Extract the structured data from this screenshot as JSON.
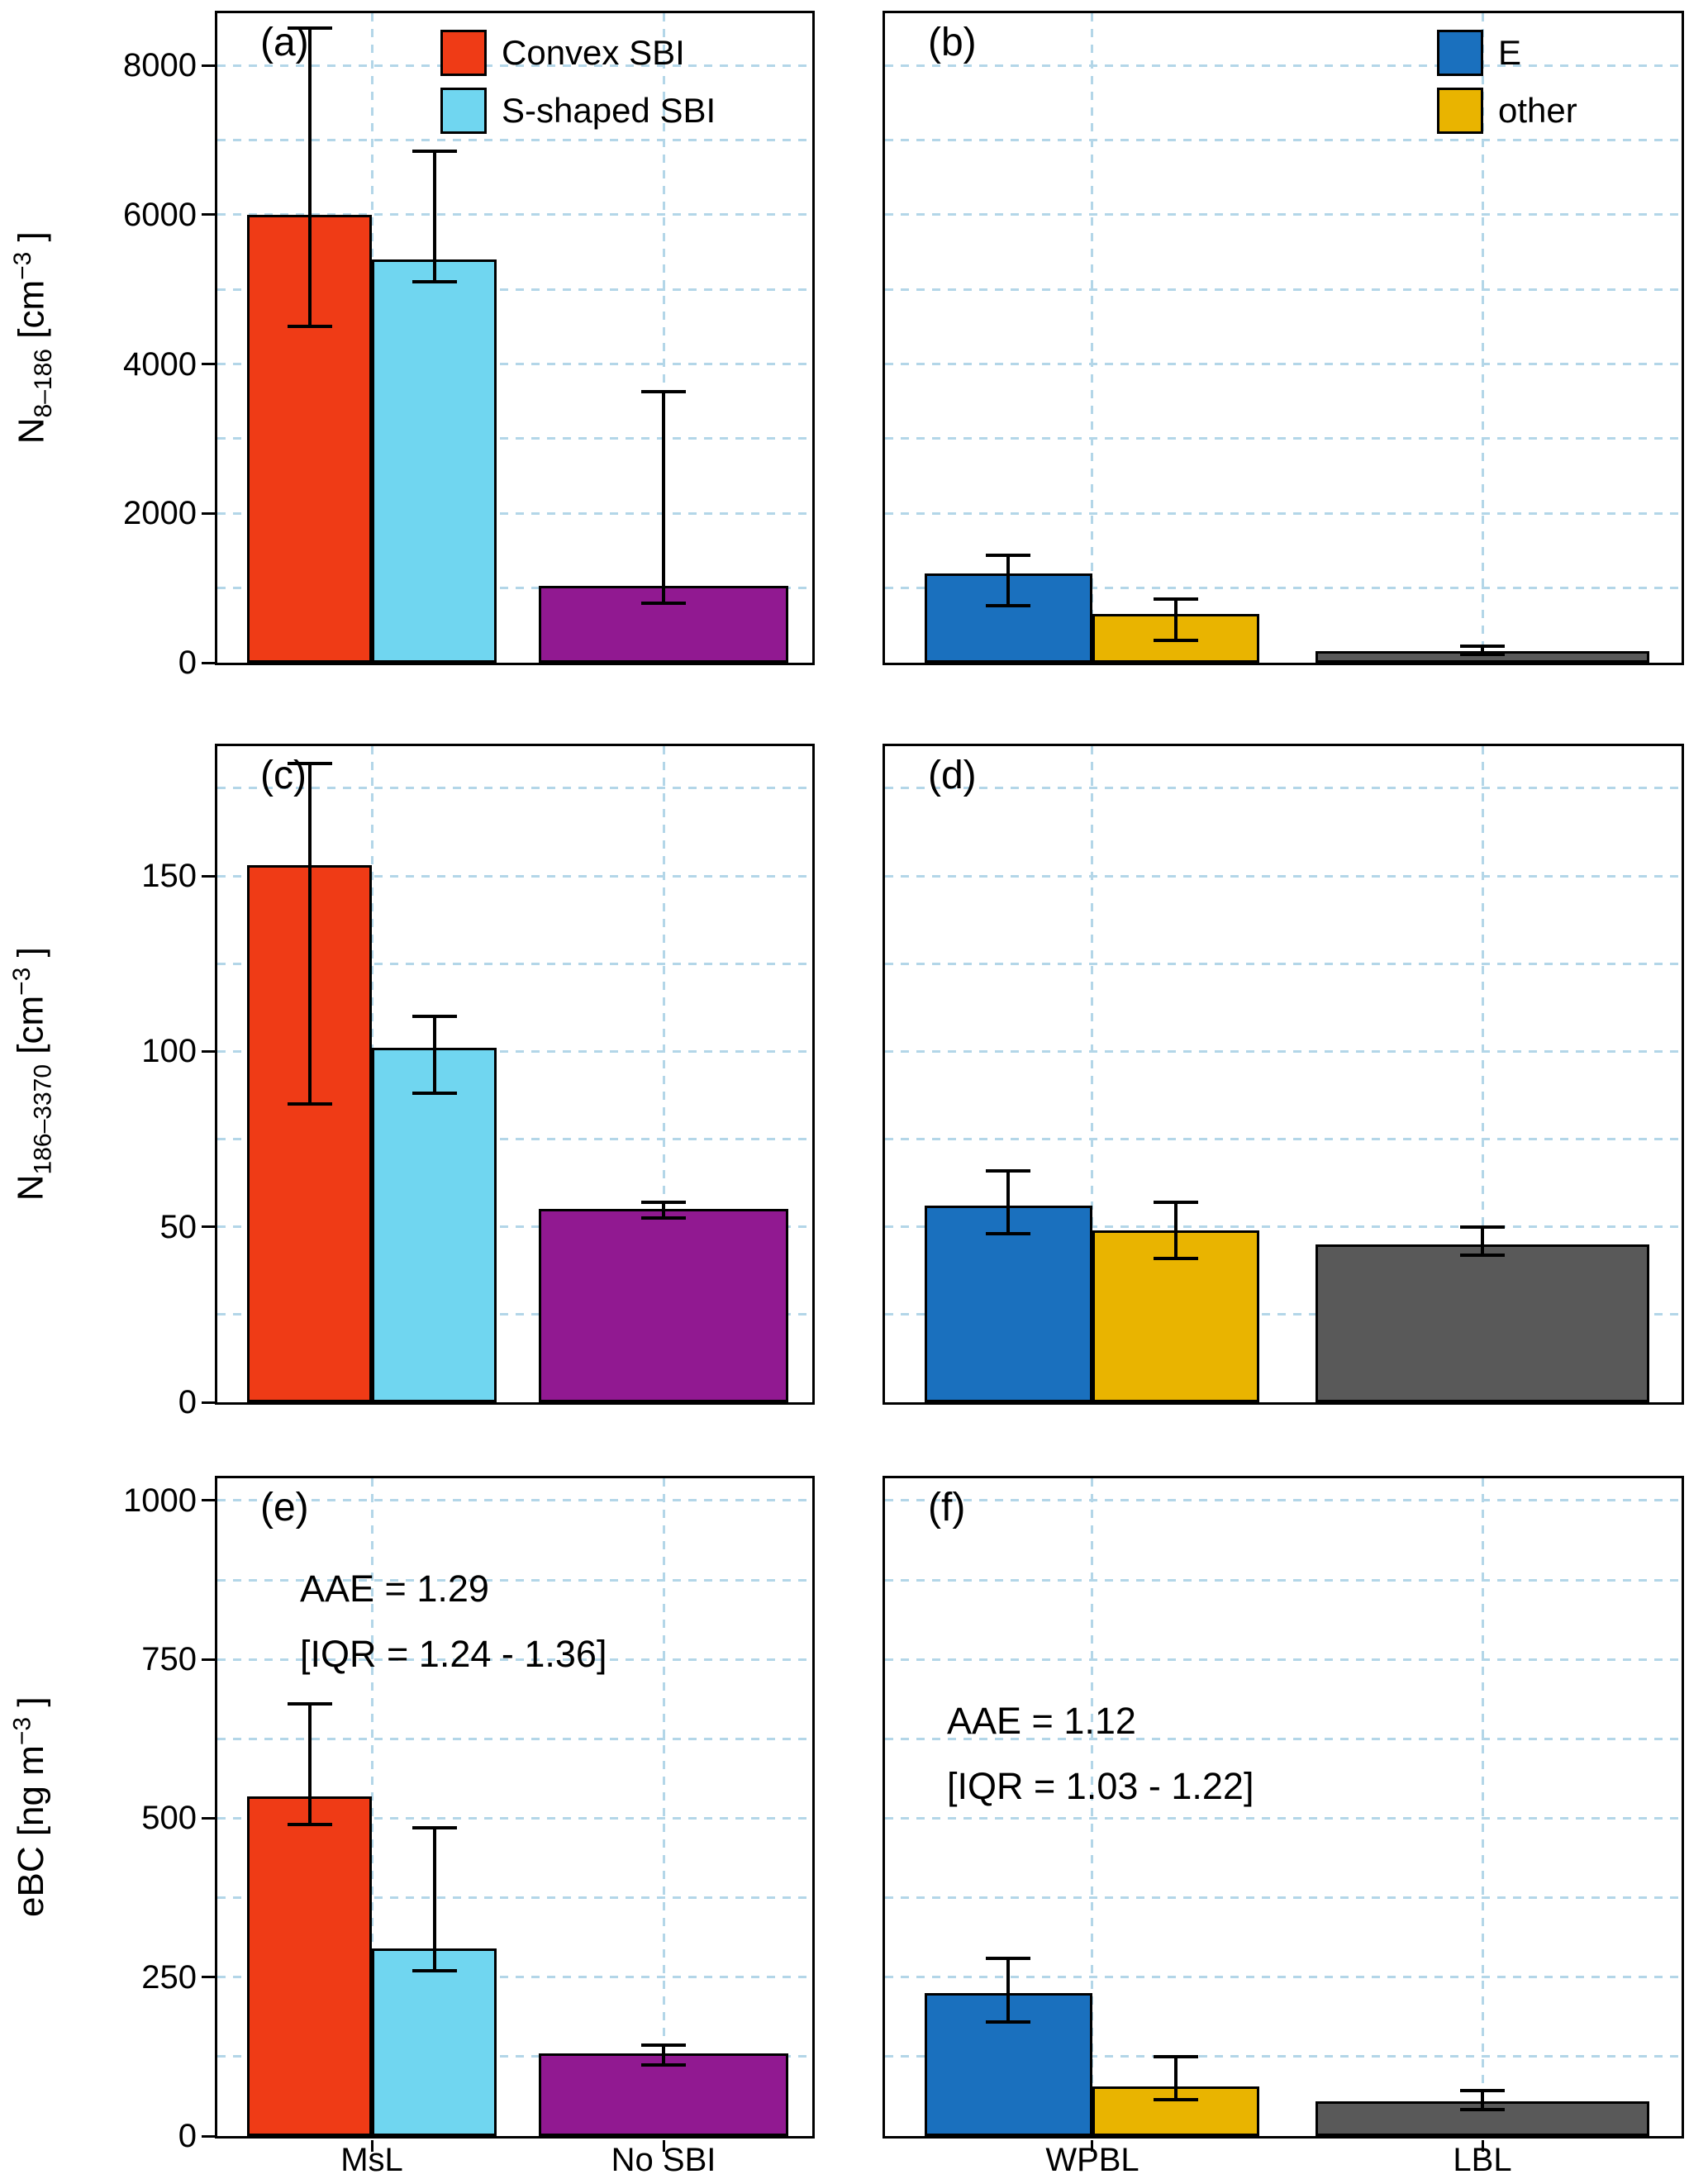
{
  "figure": {
    "colors": {
      "convex": "#EF3B16",
      "s_shaped": "#70D6F0",
      "no_sbi": "#911991",
      "e": "#1A70BE",
      "other": "#E9B400",
      "lbl": "#595959",
      "grid": "#B3D6E8",
      "axis": "#000000"
    },
    "group_centers": [
      0.26,
      0.75
    ],
    "group_width": 0.42
  },
  "ylabels": [
    {
      "base": "N",
      "sub": "8–186",
      "mid": " [cm",
      "sup": "−3",
      "end": " ]"
    },
    {
      "base": "N",
      "sub": "186–3370",
      "mid": " [cm",
      "sup": "−3",
      "end": " ]"
    },
    {
      "base": "eBC",
      "sub": "",
      "mid": " [ng m",
      "sup": "−3",
      "end": " ]"
    }
  ],
  "chart_data": [
    {
      "id": "a",
      "type": "bar",
      "label": "(a)",
      "show_y_axis": true,
      "x_tick_labels": false,
      "ylim": [
        0,
        8700
      ],
      "yticks": [
        0,
        2000,
        4000,
        6000,
        8000
      ],
      "yticks_minor": [
        1000,
        3000,
        5000,
        7000
      ],
      "legend": {
        "items": [
          {
            "label": "Convex SBI",
            "color_key": "convex"
          },
          {
            "label": "S-shaped SBI",
            "color_key": "s_shaped"
          }
        ]
      },
      "groups": [
        {
          "x_label": "MsL",
          "bars": [
            {
              "name": "Convex SBI",
              "color_key": "convex",
              "value": 6000,
              "err_low": 4500,
              "err_high": 8500
            },
            {
              "name": "S-shaped SBI",
              "color_key": "s_shaped",
              "value": 5400,
              "err_low": 5100,
              "err_high": 6850
            }
          ]
        },
        {
          "x_label": "No SBI",
          "bars": [
            {
              "name": "No SBI",
              "color_key": "no_sbi",
              "value": 1030,
              "err_low": 800,
              "err_high": 3630
            }
          ]
        }
      ]
    },
    {
      "id": "b",
      "type": "bar",
      "label": "(b)",
      "show_y_axis": false,
      "x_tick_labels": false,
      "ylim": [
        0,
        8700
      ],
      "yticks": [
        0,
        2000,
        4000,
        6000,
        8000
      ],
      "yticks_minor": [
        1000,
        3000,
        5000,
        7000
      ],
      "legend": {
        "items": [
          {
            "label": "E",
            "color_key": "e"
          },
          {
            "label": "other",
            "color_key": "other"
          }
        ]
      },
      "groups": [
        {
          "x_label": "WPBL",
          "bars": [
            {
              "name": "E",
              "color_key": "e",
              "value": 1200,
              "err_low": 760,
              "err_high": 1440
            },
            {
              "name": "other",
              "color_key": "other",
              "value": 650,
              "err_low": 300,
              "err_high": 850
            }
          ]
        },
        {
          "x_label": "LBL",
          "bars": [
            {
              "name": "LBL",
              "color_key": "lbl",
              "value": 160,
              "err_low": 110,
              "err_high": 220
            }
          ]
        }
      ]
    },
    {
      "id": "c",
      "type": "bar",
      "label": "(c)",
      "show_y_axis": true,
      "x_tick_labels": false,
      "ylim": [
        0,
        187
      ],
      "yticks": [
        0,
        50,
        100,
        150
      ],
      "yticks_minor": [
        25,
        75,
        125,
        175
      ],
      "groups": [
        {
          "x_label": "MsL",
          "bars": [
            {
              "name": "Convex SBI",
              "color_key": "convex",
              "value": 153,
              "err_low": 85,
              "err_high": 182
            },
            {
              "name": "S-shaped SBI",
              "color_key": "s_shaped",
              "value": 101,
              "err_low": 88,
              "err_high": 110
            }
          ]
        },
        {
          "x_label": "No SBI",
          "bars": [
            {
              "name": "No SBI",
              "color_key": "no_sbi",
              "value": 55,
              "err_low": 52.5,
              "err_high": 57
            }
          ]
        }
      ]
    },
    {
      "id": "d",
      "type": "bar",
      "label": "(d)",
      "show_y_axis": false,
      "x_tick_labels": false,
      "ylim": [
        0,
        187
      ],
      "yticks": [
        0,
        50,
        100,
        150
      ],
      "yticks_minor": [
        25,
        75,
        125,
        175
      ],
      "groups": [
        {
          "x_label": "WPBL",
          "bars": [
            {
              "name": "E",
              "color_key": "e",
              "value": 56,
              "err_low": 48,
              "err_high": 66
            },
            {
              "name": "other",
              "color_key": "other",
              "value": 49,
              "err_low": 41,
              "err_high": 57
            }
          ]
        },
        {
          "x_label": "LBL",
          "bars": [
            {
              "name": "LBL",
              "color_key": "lbl",
              "value": 45,
              "err_low": 42,
              "err_high": 50
            }
          ]
        }
      ]
    },
    {
      "id": "e",
      "type": "bar",
      "label": "(e)",
      "show_y_axis": true,
      "x_tick_labels": true,
      "ylim": [
        0,
        1035
      ],
      "yticks": [
        0,
        250,
        500,
        750,
        1000
      ],
      "yticks_minor": [
        125,
        375,
        625,
        875
      ],
      "annotation": [
        "AAE = 1.29",
        "[IQR = 1.24 - 1.36]"
      ],
      "groups": [
        {
          "x_label": "MsL",
          "bars": [
            {
              "name": "Convex SBI",
              "color_key": "convex",
              "value": 535,
              "err_low": 490,
              "err_high": 680
            },
            {
              "name": "S-shaped SBI",
              "color_key": "s_shaped",
              "value": 295,
              "err_low": 260,
              "err_high": 485
            }
          ]
        },
        {
          "x_label": "No SBI",
          "bars": [
            {
              "name": "No SBI",
              "color_key": "no_sbi",
              "value": 130,
              "err_low": 112,
              "err_high": 143
            }
          ]
        }
      ]
    },
    {
      "id": "f",
      "type": "bar",
      "label": "(f)",
      "show_y_axis": false,
      "x_tick_labels": true,
      "ylim": [
        0,
        1035
      ],
      "yticks": [
        0,
        250,
        500,
        750,
        1000
      ],
      "yticks_minor": [
        125,
        375,
        625,
        875
      ],
      "annotation": [
        "AAE = 1.12",
        "[IQR = 1.03 - 1.22]"
      ],
      "groups": [
        {
          "x_label": "WPBL",
          "bars": [
            {
              "name": "E",
              "color_key": "e",
              "value": 225,
              "err_low": 180,
              "err_high": 280
            },
            {
              "name": "other",
              "color_key": "other",
              "value": 78,
              "err_low": 57,
              "err_high": 125
            }
          ]
        },
        {
          "x_label": "LBL",
          "bars": [
            {
              "name": "LBL",
              "color_key": "lbl",
              "value": 54,
              "err_low": 41,
              "err_high": 72
            }
          ]
        }
      ]
    }
  ]
}
